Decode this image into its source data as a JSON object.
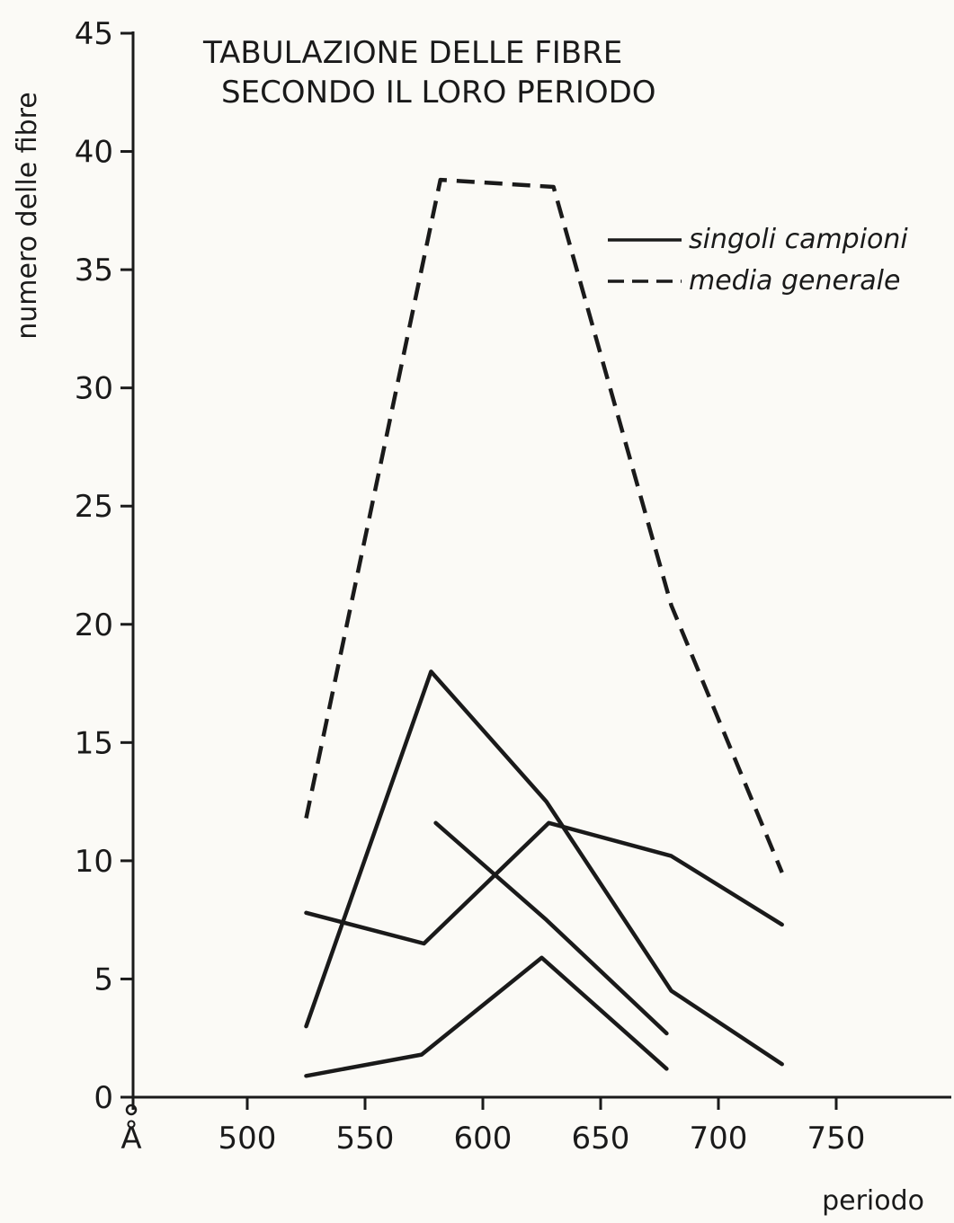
{
  "chart_data": {
    "type": "line",
    "title_lines": [
      "TABULAZIONE DELLE FIBRE",
      "SECONDO IL LORO PERIODO"
    ],
    "xlabel": "periodo",
    "ylabel": "numero delle fibre",
    "x_unit_label": "Å",
    "xlim": [
      450,
      800
    ],
    "ylim": [
      0,
      45
    ],
    "x_ticks": [
      500,
      550,
      600,
      650,
      700,
      750
    ],
    "y_ticks": [
      0,
      5,
      10,
      15,
      20,
      25,
      30,
      35,
      40,
      45
    ],
    "grid": false,
    "legend_position": "top-right",
    "legend": [
      {
        "label": "singoli campioni",
        "style": "solid"
      },
      {
        "label": "media generale",
        "style": "dashed"
      }
    ],
    "series": [
      {
        "style": "dashed",
        "points": [
          [
            525,
            11.8
          ],
          [
            582,
            38.8
          ],
          [
            630,
            38.5
          ],
          [
            680,
            20.8
          ],
          [
            727,
            9.5
          ]
        ]
      },
      {
        "style": "solid",
        "points": [
          [
            525,
            3.0
          ],
          [
            578,
            18.0
          ],
          [
            627,
            12.5
          ],
          [
            680,
            4.5
          ],
          [
            727,
            1.4
          ]
        ]
      },
      {
        "style": "solid",
        "points": [
          [
            525,
            7.8
          ],
          [
            575,
            6.5
          ],
          [
            628,
            11.6
          ],
          [
            680,
            10.2
          ],
          [
            727,
            7.3
          ]
        ]
      },
      {
        "style": "solid",
        "points": [
          [
            580,
            11.6
          ],
          [
            627,
            7.5
          ],
          [
            678,
            2.7
          ]
        ]
      },
      {
        "style": "solid",
        "points": [
          [
            525,
            0.9
          ],
          [
            574,
            1.8
          ],
          [
            625,
            5.9
          ],
          [
            678,
            1.2
          ]
        ]
      }
    ]
  }
}
